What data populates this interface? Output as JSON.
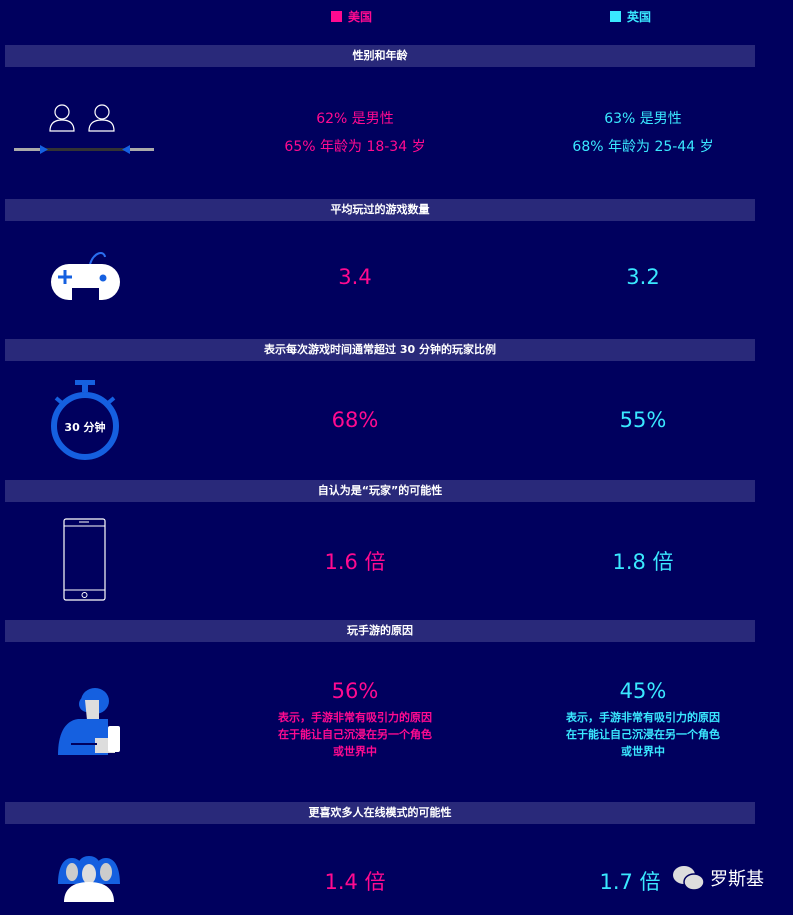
{
  "legend": {
    "us": "美国",
    "uk": "英国",
    "us_color": "#ff0a90",
    "uk_color": "#3ae8ff"
  },
  "sections": [
    {
      "title": "性别和年龄",
      "icon": "gender-icon",
      "us": [
        "62% 是男性",
        "65% 年龄为 18-34 岁"
      ],
      "uk": [
        "63% 是男性",
        "68% 年龄为 25-44 岁"
      ]
    },
    {
      "title": "平均玩过的游戏数量",
      "icon": "gamepad-icon",
      "us": "3.4",
      "uk": "3.2"
    },
    {
      "title": "表示每次游戏时间通常超过 30 分钟的玩家比例",
      "icon": "stopwatch-icon",
      "icon_label": "30 分钟",
      "us": "68%",
      "uk": "55%"
    },
    {
      "title": "自认为是“玩家”的可能性",
      "icon": "smartphone-icon",
      "us": "1.6 倍",
      "uk": "1.8 倍"
    },
    {
      "title": "玩手游的原因",
      "icon": "person-phone-icon",
      "us": "56%",
      "uk": "45%",
      "desc": [
        "表示，手游非常有吸引力的原因",
        "在于能让自己沉浸在另一个角色",
        "或世界中"
      ]
    },
    {
      "title": "更喜欢多人在线模式的可能性",
      "icon": "group-icon",
      "us": "1.4 倍",
      "uk": "1.7 倍"
    }
  ],
  "watermark": "罗斯基"
}
